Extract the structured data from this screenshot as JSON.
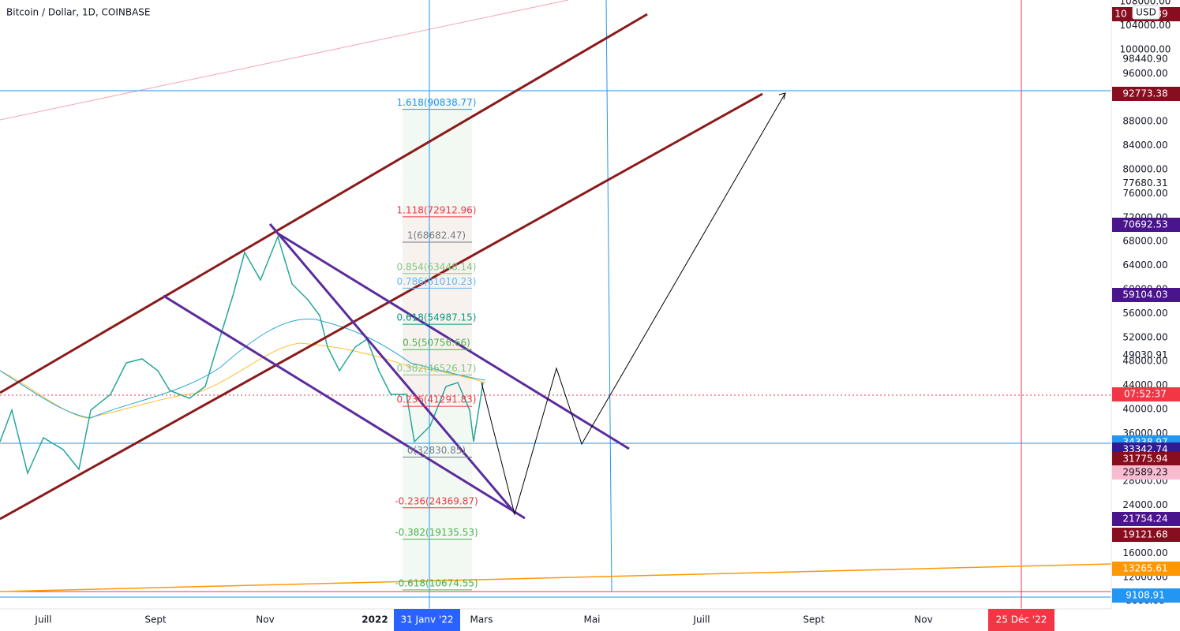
{
  "header": {
    "title": "Bitcoin / Dollar, 1D, COINBASE",
    "currency": "USD"
  },
  "price_axis": [
    "108000.00",
    "104000.00",
    "100000.00",
    "98440.90",
    "96000.00",
    "88000.00",
    "84000.00",
    "80000.00",
    "77680.31",
    "76000.00",
    "72000.00",
    "68000.00",
    "64000.00",
    "60000.00",
    "56000.00",
    "52000.00",
    "49030.91",
    "48000.00",
    "44000.00",
    "40000.00",
    "36000.00",
    "28000.00",
    "24000.00",
    "16000.00",
    "12000.00",
    "8000.00"
  ],
  "price_tags": [
    {
      "text": "10",
      "color": "#880e1f"
    },
    {
      "text": "39",
      "color": "#880e1f"
    },
    {
      "text": "92773.38",
      "color": "#880e1f"
    },
    {
      "text": "70692.53",
      "color": "#4a148c"
    },
    {
      "text": "59104.03",
      "color": "#4a148c"
    },
    {
      "text": "07:52:37",
      "color": "#f23645"
    },
    {
      "text": "34338.97",
      "color": "#2196f3"
    },
    {
      "text": "33342.74",
      "color": "#311b92"
    },
    {
      "text": "31775.94",
      "color": "#880e1f"
    },
    {
      "text": "29589.23",
      "color": "#f8bbd0"
    },
    {
      "text": "21754.24",
      "color": "#4a148c"
    },
    {
      "text": "19121.68",
      "color": "#880e1f"
    },
    {
      "text": "13265.61",
      "color": "#ff9800"
    },
    {
      "text": "9108.91",
      "color": "#2196f3"
    }
  ],
  "fib_levels": [
    {
      "label": "1.618(90838.77)",
      "color": "#2196f3"
    },
    {
      "label": "1.118(72912.96)",
      "color": "#f23645"
    },
    {
      "label": "1(68682.47)",
      "color": "#787b86"
    },
    {
      "label": "0.854(63448.14)",
      "color": "#81c784"
    },
    {
      "label": "0.786(61010.23)",
      "color": "#64b5f6"
    },
    {
      "label": "0.618(54987.15)",
      "color": "#089981"
    },
    {
      "label": "0.5(50756.66)",
      "color": "#4caf50"
    },
    {
      "label": "0.382(46526.17)",
      "color": "#81c784"
    },
    {
      "label": "0.236(41291.83)",
      "color": "#f23645"
    },
    {
      "label": "0(32830.85)",
      "color": "#787b86"
    },
    {
      "label": "-0.236(24369.87)",
      "color": "#f23645"
    },
    {
      "label": "-0.382(19135.53)",
      "color": "#4caf50"
    },
    {
      "label": "-0.618(10674.55)",
      "color": "#4caf50"
    }
  ],
  "time_axis": [
    "Juill",
    "Sept",
    "Nov",
    "2022",
    "31 Janv '22",
    "Mars",
    "Mai",
    "Juill",
    "Sept",
    "Nov",
    "25 Déc '22"
  ]
}
